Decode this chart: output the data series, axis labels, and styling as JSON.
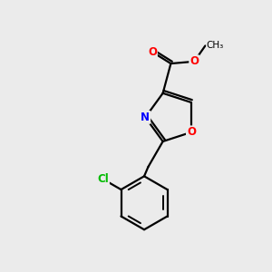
{
  "background_color": "#ebebeb",
  "bond_color": "#000000",
  "atom_colors": {
    "O": "#ff0000",
    "N": "#0000ff",
    "Cl": "#00bb00",
    "C": "#000000"
  },
  "figsize": [
    3.0,
    3.0
  ],
  "dpi": 100,
  "xlim": [
    0,
    10
  ],
  "ylim": [
    0,
    10
  ]
}
